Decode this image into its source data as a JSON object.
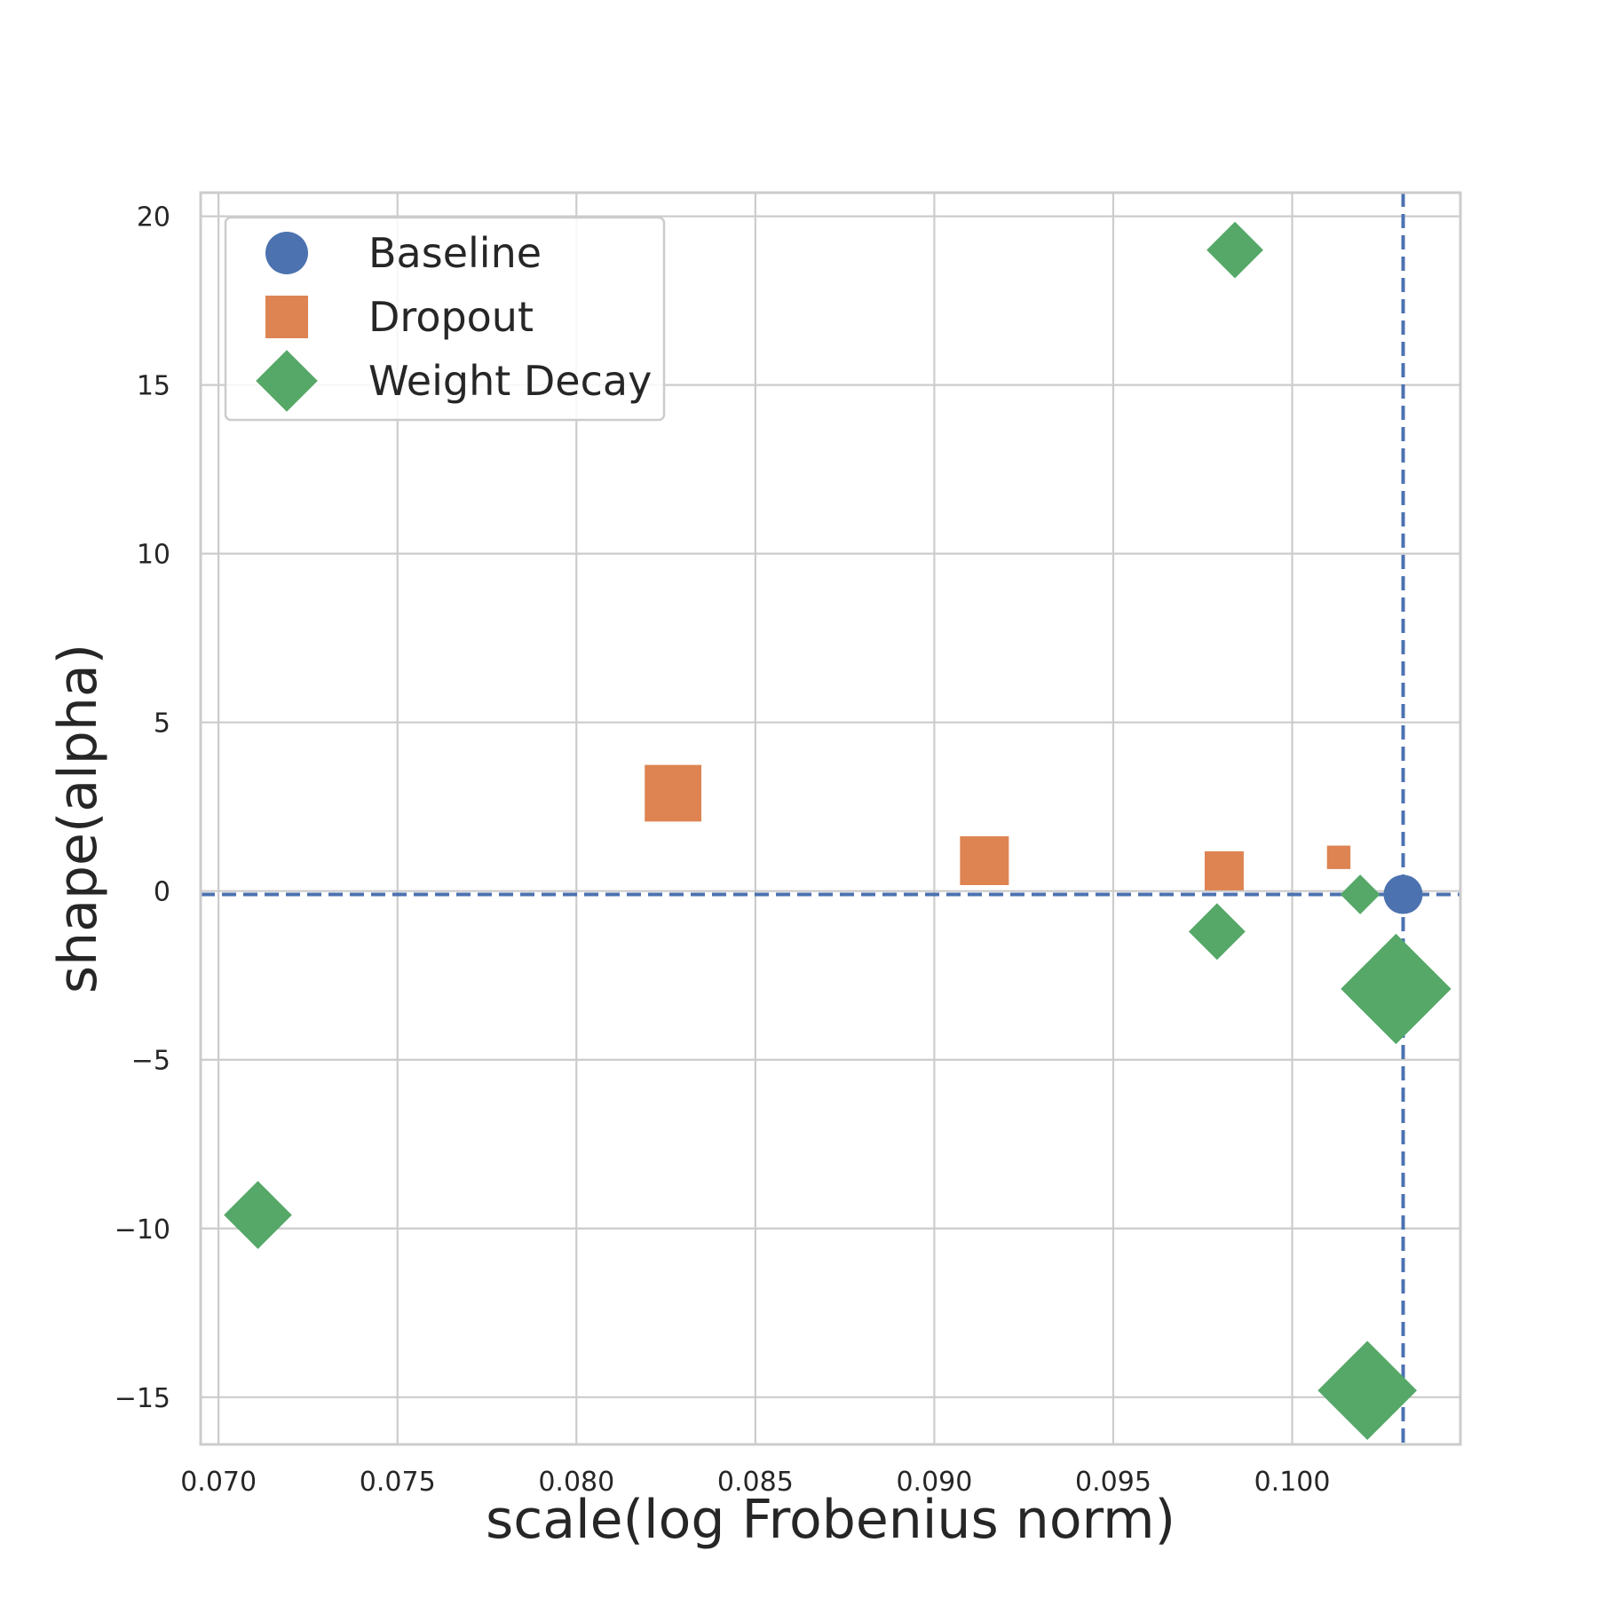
{
  "chart_data": {
    "type": "scatter",
    "title": "",
    "xlabel": "scale(log Frobenius norm)",
    "ylabel": "shape(alpha)",
    "xlim": [
      0.0695,
      0.1047
    ],
    "ylim": [
      -16.4,
      20.7
    ],
    "x_ticks": [
      0.07,
      0.075,
      0.08,
      0.085,
      0.09,
      0.095,
      0.1
    ],
    "x_tick_labels": [
      "0.070",
      "0.075",
      "0.080",
      "0.085",
      "0.090",
      "0.095",
      "0.100"
    ],
    "y_ticks": [
      -15,
      -10,
      -5,
      0,
      5,
      10,
      15,
      20
    ],
    "y_tick_labels": [
      "−15",
      "−10",
      "−5",
      "0",
      "5",
      "10",
      "15",
      "20"
    ],
    "grid": true,
    "legend_position": "upper-left",
    "reference_lines": {
      "horizontal_y": -0.1,
      "vertical_x": 0.1031,
      "color": "#4c72b0",
      "style": "dashed"
    },
    "series": [
      {
        "name": "Baseline",
        "marker": "circle",
        "color": "#4c72b0",
        "points": [
          {
            "x": 0.1031,
            "y": -0.1,
            "size": 1.0
          }
        ]
      },
      {
        "name": "Dropout",
        "marker": "square",
        "color": "#dd8452",
        "points": [
          {
            "x": 0.0827,
            "y": 2.9,
            "size": 1.45
          },
          {
            "x": 0.0914,
            "y": 0.9,
            "size": 1.25
          },
          {
            "x": 0.0981,
            "y": 0.6,
            "size": 1.0
          },
          {
            "x": 0.1013,
            "y": 1.0,
            "size": 0.6
          }
        ]
      },
      {
        "name": "Weight Decay",
        "marker": "diamond",
        "color": "#55a868",
        "points": [
          {
            "x": 0.0984,
            "y": 19.0,
            "size": 1.0
          },
          {
            "x": 0.0711,
            "y": -9.6,
            "size": 1.2
          },
          {
            "x": 0.0979,
            "y": -1.2,
            "size": 1.0
          },
          {
            "x": 0.1019,
            "y": -0.1,
            "size": 0.7
          },
          {
            "x": 0.1029,
            "y": -2.9,
            "size": 1.95
          },
          {
            "x": 0.1021,
            "y": -14.8,
            "size": 1.75
          }
        ]
      }
    ]
  }
}
